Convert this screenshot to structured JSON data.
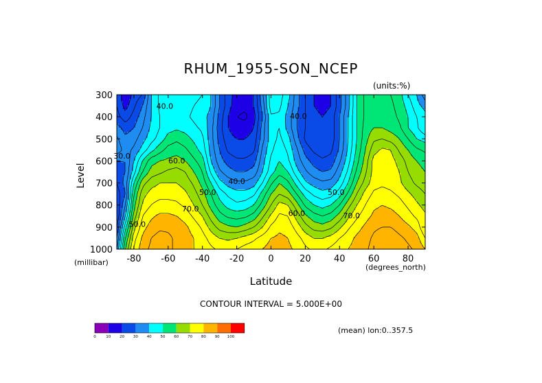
{
  "title": "RHUM_1955-SON_NCEP",
  "units_label": "(units:%)",
  "contour_interval": "CONTOUR INTERVAL = 5.000E+00",
  "mean_label": "(mean) lon:0..357.5",
  "chart_data": {
    "type": "heatmap",
    "title": "RHUM_1955-SON_NCEP",
    "xlabel": "Latitude",
    "x_unit": "(degrees_north)",
    "ylabel": "Level",
    "y_unit": "(millibar)",
    "xlim": [
      -90,
      90
    ],
    "ylim": [
      1000,
      300
    ],
    "x_ticks": [
      -80,
      -60,
      -40,
      -20,
      0,
      20,
      40,
      60,
      80
    ],
    "x_tick_labels": [
      "-80",
      "-60",
      "-40",
      "-20",
      "0",
      "20",
      "40",
      "60",
      "80"
    ],
    "y_ticks": [
      300,
      400,
      500,
      600,
      700,
      800,
      900,
      1000
    ],
    "y_tick_labels": [
      "300",
      "400",
      "500",
      "600",
      "700",
      "800",
      "900",
      "1000"
    ],
    "contour_labels": [
      {
        "lat": -62,
        "lev": 355,
        "text": "40.0"
      },
      {
        "lat": -87,
        "lev": 580,
        "text": "30.0"
      },
      {
        "lat": -55,
        "lev": 601,
        "text": "60.0"
      },
      {
        "lat": -37,
        "lev": 745,
        "text": "50.0"
      },
      {
        "lat": -20,
        "lev": 695,
        "text": "40.0"
      },
      {
        "lat": -47,
        "lev": 820,
        "text": "70.0"
      },
      {
        "lat": -78,
        "lev": 890,
        "text": "50.0"
      },
      {
        "lat": 16,
        "lev": 400,
        "text": "40.0"
      },
      {
        "lat": 38,
        "lev": 745,
        "text": "50.0"
      },
      {
        "lat": 15,
        "lev": 840,
        "text": "60.0"
      },
      {
        "lat": 47,
        "lev": 850,
        "text": "70.0"
      }
    ],
    "colorbar": {
      "levels": [
        "0",
        "10",
        "20",
        "30",
        "40",
        "50",
        "60",
        "70",
        "80",
        "90",
        "100"
      ],
      "colors": [
        "#8a00b8",
        "#1e00e6",
        "#0a4be8",
        "#1e8cf0",
        "#00ffff",
        "#00e676",
        "#96dc00",
        "#ffff00",
        "#ffb400",
        "#ff6e00",
        "#ff0000"
      ]
    },
    "grid": [
      {
        "lev": 300,
        "values": [
          25,
          15,
          22,
          25,
          40,
          46,
          47,
          48,
          47,
          46,
          45,
          40,
          30,
          22,
          18,
          17,
          20,
          34,
          48,
          47,
          42,
          32,
          25,
          20,
          18,
          20,
          28,
          38,
          50,
          56,
          56,
          56,
          55,
          52,
          45,
          40,
          32
        ]
      },
      {
        "lev": 350,
        "values": [
          25,
          18,
          24,
          30,
          40,
          46,
          47,
          48,
          47,
          45,
          44,
          40,
          30,
          22,
          17,
          16,
          20,
          32,
          48,
          46,
          40,
          32,
          25,
          20,
          18,
          20,
          28,
          38,
          50,
          56,
          57,
          57,
          56,
          53,
          48,
          42,
          38
        ]
      },
      {
        "lev": 400,
        "values": [
          27,
          22,
          27,
          33,
          40,
          45,
          47,
          48,
          46,
          44,
          42,
          38,
          28,
          20,
          15,
          14,
          18,
          30,
          44,
          44,
          38,
          30,
          25,
          22,
          20,
          22,
          30,
          40,
          50,
          56,
          58,
          58,
          57,
          54,
          50,
          45,
          42
        ]
      },
      {
        "lev": 450,
        "values": [
          32,
          28,
          30,
          35,
          41,
          45,
          48,
          49,
          48,
          46,
          44,
          37,
          27,
          20,
          17,
          17,
          20,
          32,
          44,
          45,
          38,
          30,
          25,
          21,
          20,
          22,
          30,
          40,
          50,
          57,
          60,
          60,
          58,
          56,
          50,
          46,
          40
        ]
      },
      {
        "lev": 500,
        "values": [
          36,
          31,
          33,
          38,
          43,
          47,
          52,
          54,
          52,
          49,
          46,
          37,
          28,
          22,
          20,
          20,
          22,
          33,
          43,
          46,
          42,
          32,
          24,
          20,
          20,
          22,
          30,
          40,
          50,
          58,
          64,
          65,
          63,
          60,
          55,
          50,
          48
        ]
      },
      {
        "lev": 550,
        "values": [
          38,
          33,
          36,
          42,
          48,
          53,
          57,
          58,
          56,
          52,
          48,
          38,
          30,
          24,
          22,
          22,
          24,
          36,
          44,
          48,
          44,
          36,
          28,
          24,
          22,
          24,
          31,
          41,
          51,
          60,
          68,
          71,
          70,
          64,
          60,
          56,
          54
        ]
      },
      {
        "lev": 600,
        "values": [
          30,
          30,
          40,
          50,
          58,
          60,
          61,
          62,
          60,
          56,
          52,
          40,
          32,
          28,
          26,
          26,
          28,
          38,
          46,
          50,
          46,
          38,
          32,
          28,
          26,
          27,
          34,
          43,
          53,
          62,
          72,
          74,
          72,
          68,
          63,
          60,
          58
        ]
      },
      {
        "lev": 650,
        "values": [
          28,
          30,
          43,
          55,
          62,
          64,
          66,
          67,
          65,
          60,
          55,
          44,
          36,
          32,
          30,
          30,
          32,
          40,
          48,
          53,
          50,
          42,
          36,
          32,
          30,
          31,
          38,
          46,
          56,
          64,
          72,
          74,
          73,
          70,
          65,
          62,
          60
        ]
      },
      {
        "lev": 700,
        "values": [
          25,
          32,
          50,
          63,
          68,
          70,
          70,
          70,
          68,
          64,
          58,
          50,
          42,
          38,
          36,
          36,
          38,
          45,
          54,
          60,
          56,
          48,
          41,
          38,
          36,
          37,
          42,
          50,
          60,
          67,
          73,
          74,
          73,
          71,
          67,
          64,
          62
        ]
      },
      {
        "lev": 750,
        "values": [
          22,
          30,
          55,
          68,
          72,
          73,
          73,
          73,
          71,
          67,
          62,
          55,
          48,
          44,
          42,
          42,
          44,
          52,
          60,
          65,
          62,
          55,
          48,
          44,
          42,
          43,
          48,
          56,
          65,
          72,
          76,
          77,
          76,
          74,
          71,
          68,
          65
        ]
      },
      {
        "lev": 800,
        "values": [
          20,
          35,
          58,
          71,
          75,
          77,
          77,
          76,
          74,
          70,
          65,
          58,
          52,
          48,
          46,
          47,
          50,
          57,
          65,
          72,
          70,
          62,
          54,
          50,
          48,
          50,
          55,
          63,
          70,
          75,
          79,
          80,
          79,
          77,
          74,
          71,
          68
        ]
      },
      {
        "lev": 850,
        "values": [
          20,
          40,
          62,
          75,
          79,
          81,
          81,
          80,
          78,
          74,
          70,
          63,
          57,
          54,
          53,
          54,
          57,
          64,
          71,
          76,
          75,
          68,
          61,
          57,
          55,
          57,
          62,
          69,
          74,
          78,
          81,
          82,
          82,
          80,
          77,
          74,
          71
        ]
      },
      {
        "lev": 900,
        "values": [
          25,
          48,
          68,
          78,
          82,
          84,
          84,
          83,
          81,
          78,
          74,
          68,
          63,
          61,
          60,
          62,
          65,
          70,
          76,
          79,
          78,
          73,
          67,
          63,
          62,
          64,
          69,
          74,
          78,
          81,
          84,
          85,
          85,
          83,
          81,
          78,
          70
        ]
      },
      {
        "lev": 950,
        "values": [
          30,
          55,
          73,
          81,
          85,
          87,
          86,
          84,
          82,
          80,
          77,
          73,
          70,
          69,
          70,
          72,
          74,
          77,
          80,
          81,
          80,
          77,
          73,
          70,
          70,
          72,
          75,
          78,
          81,
          83,
          86,
          88,
          88,
          86,
          84,
          82,
          75
        ]
      },
      {
        "lev": 1000,
        "values": [
          35,
          60,
          76,
          83,
          86,
          87,
          86,
          84,
          82,
          80,
          78,
          76,
          74,
          74,
          75,
          77,
          78,
          80,
          82,
          82,
          81,
          79,
          76,
          74,
          74,
          76,
          78,
          80,
          82,
          84,
          87,
          89,
          90,
          88,
          86,
          84,
          80
        ]
      }
    ]
  }
}
